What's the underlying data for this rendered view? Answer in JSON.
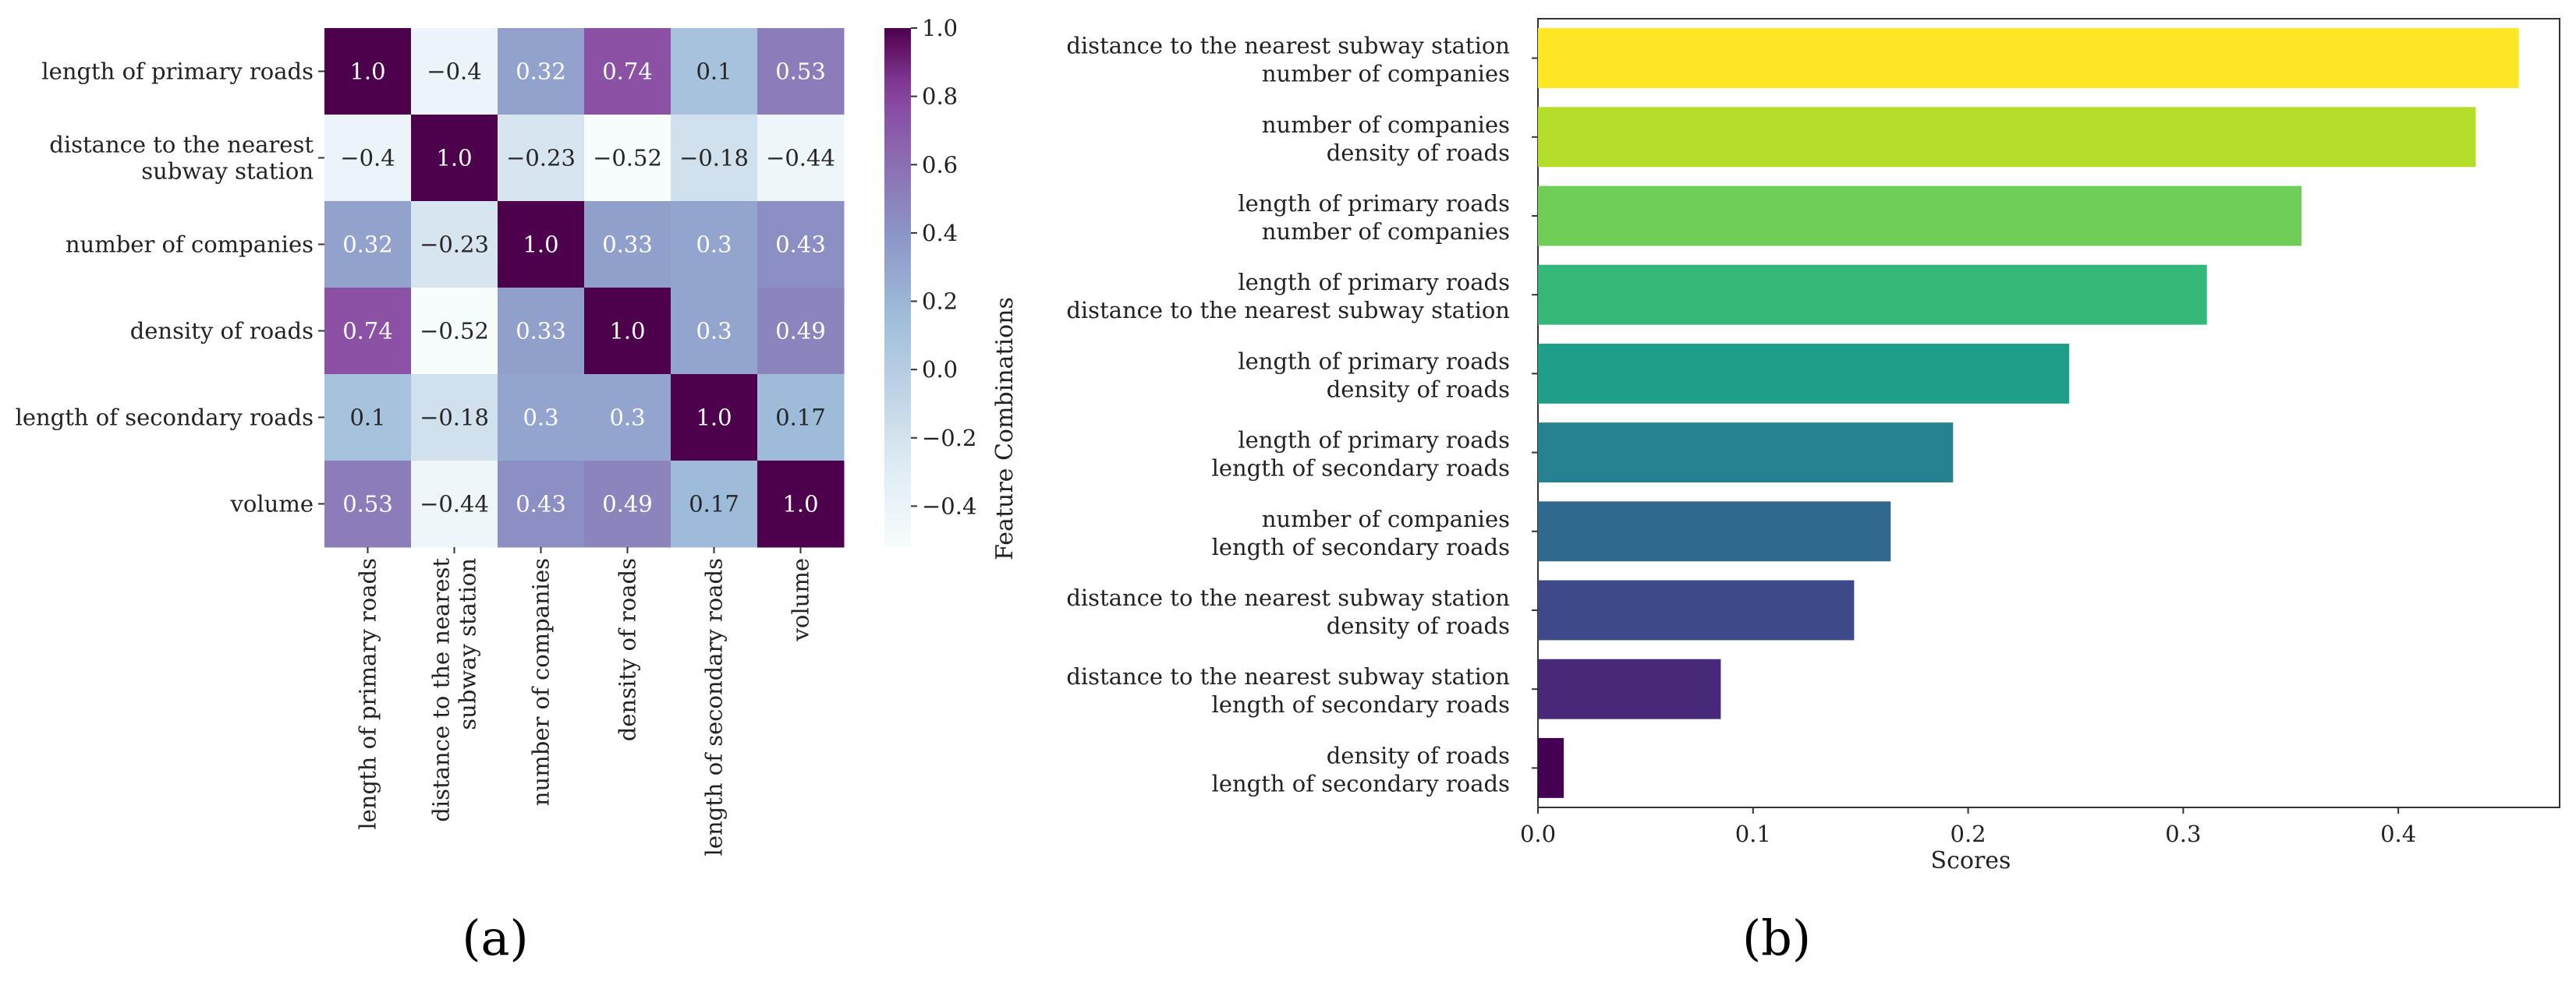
{
  "chart_data": [
    {
      "type": "heatmap",
      "panel_label": "(a)",
      "rows": [
        "length of primary roads",
        "distance to the nearest subway station",
        "number of companies",
        "density of roads",
        "length of secondary roads",
        "volume"
      ],
      "row_labels": [
        [
          "length of primary roads"
        ],
        [
          "distance to the nearest",
          "subway station"
        ],
        [
          "number of companies"
        ],
        [
          "density of roads"
        ],
        [
          "length of secondary roads"
        ],
        [
          "volume"
        ]
      ],
      "columns": [
        "length of primary roads",
        "distance to the nearest subway station",
        "number of companies",
        "density of roads",
        "length of secondary roads",
        "volume"
      ],
      "column_labels": [
        [
          "length of primary roads"
        ],
        [
          "distance to the nearest",
          "subway station"
        ],
        [
          "number of companies"
        ],
        [
          "density of roads"
        ],
        [
          "length of secondary roads"
        ],
        [
          "volume"
        ]
      ],
      "values": [
        [
          1.0,
          -0.4,
          0.32,
          0.74,
          0.1,
          0.53
        ],
        [
          -0.4,
          1.0,
          -0.23,
          -0.52,
          -0.18,
          -0.44
        ],
        [
          0.32,
          -0.23,
          1.0,
          0.33,
          0.3,
          0.43
        ],
        [
          0.74,
          -0.52,
          0.33,
          1.0,
          0.3,
          0.49
        ],
        [
          0.1,
          -0.18,
          0.3,
          0.3,
          1.0,
          0.17
        ],
        [
          0.53,
          -0.44,
          0.43,
          0.49,
          0.17,
          1.0
        ]
      ],
      "cell_text": [
        [
          "1.0",
          "−0.4",
          "0.32",
          "0.74",
          "0.1",
          "0.53"
        ],
        [
          "−0.4",
          "1.0",
          "−0.23",
          "−0.52",
          "−0.18",
          "−0.44"
        ],
        [
          "0.32",
          "−0.23",
          "1.0",
          "0.33",
          "0.3",
          "0.43"
        ],
        [
          "0.74",
          "−0.52",
          "0.33",
          "1.0",
          "0.3",
          "0.49"
        ],
        [
          "0.1",
          "−0.18",
          "0.3",
          "0.3",
          "1.0",
          "0.17"
        ],
        [
          "0.53",
          "−0.44",
          "0.43",
          "0.49",
          "0.17",
          "1.0"
        ]
      ],
      "colormap": "BuPu",
      "colorbar": {
        "range": [
          -0.52,
          1.0
        ],
        "ticks": [
          1.0,
          0.8,
          0.6,
          0.4,
          0.2,
          0.0,
          -0.2,
          -0.4
        ],
        "tick_labels": [
          "1.0",
          "0.8",
          "0.6",
          "0.4",
          "0.2",
          "0.0",
          "−0.2",
          "−0.4"
        ]
      }
    },
    {
      "type": "bar",
      "orientation": "horizontal",
      "panel_label": "(b)",
      "categories": [
        [
          "distance to the nearest subway station",
          "number of companies"
        ],
        [
          "number of companies",
          "density of roads"
        ],
        [
          "length of primary roads",
          "number of companies"
        ],
        [
          "length of primary roads",
          "distance to the nearest subway station"
        ],
        [
          "length of primary roads",
          "density of roads"
        ],
        [
          "length of primary roads",
          "length of secondary roads"
        ],
        [
          "number of companies",
          "length of secondary roads"
        ],
        [
          "distance to the nearest subway station",
          "density of roads"
        ],
        [
          "distance to the nearest subway station",
          "length of secondary roads"
        ],
        [
          "density of roads",
          "length of secondary roads"
        ]
      ],
      "values": [
        0.456,
        0.436,
        0.355,
        0.311,
        0.247,
        0.193,
        0.164,
        0.147,
        0.085,
        0.012
      ],
      "colors": [
        "#fde725",
        "#b5de2b",
        "#6ece58",
        "#35b779",
        "#1f9e89",
        "#26828e",
        "#31688e",
        "#3e4989",
        "#482878",
        "#440154"
      ],
      "xlabel": "Scores",
      "ylabel": "Feature Combinations",
      "xlim": [
        0,
        0.475
      ],
      "xticks": [
        0.0,
        0.1,
        0.2,
        0.3,
        0.4
      ],
      "xtick_labels": [
        "0.0",
        "0.1",
        "0.2",
        "0.3",
        "0.4"
      ]
    }
  ]
}
